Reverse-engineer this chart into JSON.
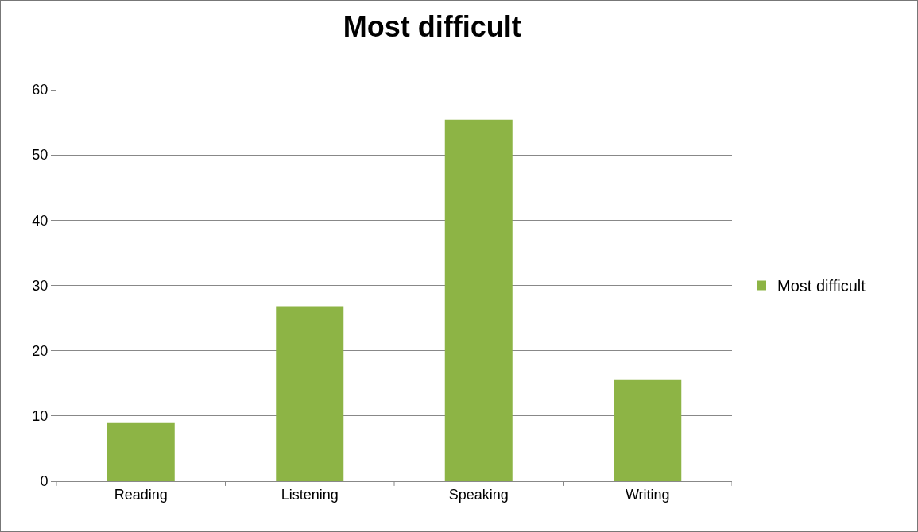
{
  "chart_data": {
    "type": "bar",
    "title": "Most difficult",
    "categories": [
      "Reading",
      "Listening",
      "Speaking",
      "Writing"
    ],
    "series": [
      {
        "name": "Most difficult",
        "color": "#8db445",
        "values": [
          8.9,
          26.7,
          55.4,
          15.6
        ]
      }
    ],
    "ylim": [
      0,
      60
    ],
    "yticks": [
      0,
      10,
      20,
      30,
      40,
      50,
      60
    ],
    "grid": "y",
    "legend": "right"
  }
}
